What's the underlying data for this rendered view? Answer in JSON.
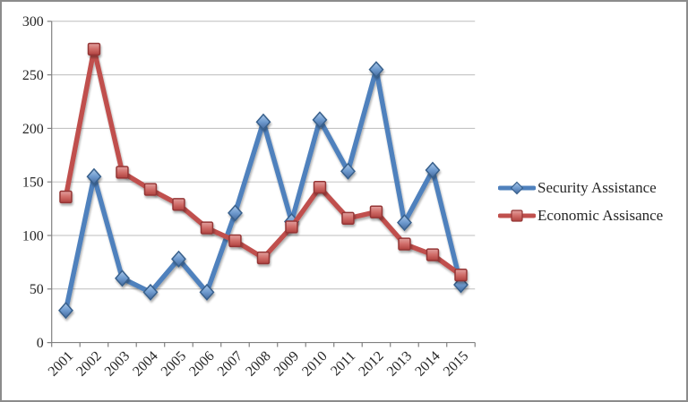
{
  "frame": {
    "background": "#FFFFFF",
    "border_color": "#8C8C8C"
  },
  "chart_data": {
    "type": "line",
    "title": "",
    "xlabel": "",
    "ylabel": "",
    "categories": [
      "2001",
      "2002",
      "2003",
      "2004",
      "2005",
      "2006",
      "2007",
      "2008",
      "2009",
      "2010",
      "2011",
      "2012",
      "2013",
      "2014",
      "2015"
    ],
    "series": [
      {
        "name": "Security Assistance",
        "color": "#4F81BD",
        "marker": "diamond",
        "values": [
          30,
          155,
          60,
          47,
          78,
          47,
          121,
          206,
          113,
          208,
          160,
          255,
          112,
          161,
          54
        ]
      },
      {
        "name": "Economic Assisance",
        "color": "#C0504D",
        "marker": "square",
        "values": [
          136,
          274,
          159,
          143,
          129,
          107,
          95,
          79,
          108,
          145,
          116,
          122,
          92,
          82,
          63
        ]
      }
    ],
    "ylim": [
      0,
      300
    ],
    "yticks": [
      0,
      50,
      100,
      150,
      200,
      250,
      300
    ],
    "grid": true,
    "legend_position": "right",
    "colors": {
      "gridline": "#BDBDBD",
      "axis": "#808080",
      "text": "#262626"
    }
  }
}
